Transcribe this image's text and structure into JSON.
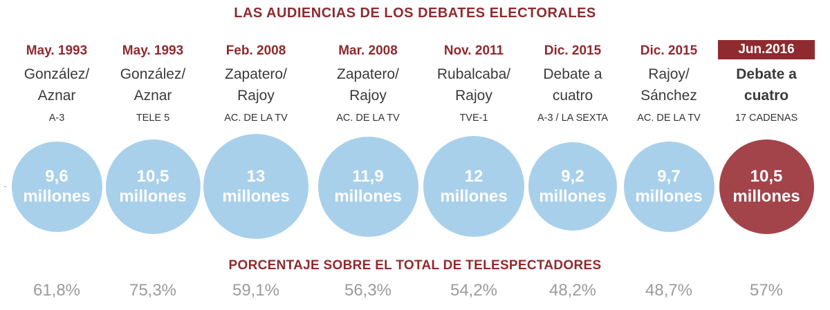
{
  "colors": {
    "accent": "#8f2a2f",
    "bubble": "#a9d0ea",
    "highlight_bubble": "#a3444a",
    "percent_text": "#9b9b9b"
  },
  "chart_data": {
    "type": "bubble",
    "title": "LAS AUDIENCIAS DE LOS DEBATES ELECTORALES",
    "subtitle": "PORCENTAJE SOBRE EL TOTAL DE TELESPECTADORES",
    "value_unit": "millones",
    "debates": [
      {
        "date": "May. 1993",
        "names": "González/\nAznar",
        "channel": "A-3",
        "value": 9.6,
        "value_label": "9,6",
        "percent_label": "61,8%",
        "highlight": false
      },
      {
        "date": "May. 1993",
        "names": "González/\nAznar",
        "channel": "TELE 5",
        "value": 10.5,
        "value_label": "10,5",
        "percent_label": "75,3%",
        "highlight": false
      },
      {
        "date": "Feb. 2008",
        "names": "Zapatero/\nRajoy",
        "channel": "AC. DE LA TV",
        "value": 13,
        "value_label": "13",
        "percent_label": "59,1%",
        "highlight": false
      },
      {
        "date": "Mar. 2008",
        "names": "Zapatero/\nRajoy",
        "channel": "AC. DE LA TV",
        "value": 11.9,
        "value_label": "11,9",
        "percent_label": "56,3%",
        "highlight": false
      },
      {
        "date": "Nov. 2011",
        "names": "Rubalcaba/\nRajoy",
        "channel": "TVE-1",
        "value": 12,
        "value_label": "12",
        "percent_label": "54,2%",
        "highlight": false
      },
      {
        "date": "Dic. 2015",
        "names": "Debate a\ncuatro",
        "channel": "A-3 / LA SEXTA",
        "value": 9.2,
        "value_label": "9,2",
        "percent_label": "48,2%",
        "highlight": false
      },
      {
        "date": "Dic. 2015",
        "names": "Rajoy/\nSánchez",
        "channel": "AC. DE LA TV",
        "value": 9.7,
        "value_label": "9,7",
        "percent_label": "48,7%",
        "highlight": false
      },
      {
        "date": "Jun.2016",
        "names": "Debate a\ncuatro",
        "channel": "17 CADENAS",
        "value": 10.5,
        "value_label": "10,5",
        "percent_label": "57%",
        "highlight": true
      }
    ]
  }
}
